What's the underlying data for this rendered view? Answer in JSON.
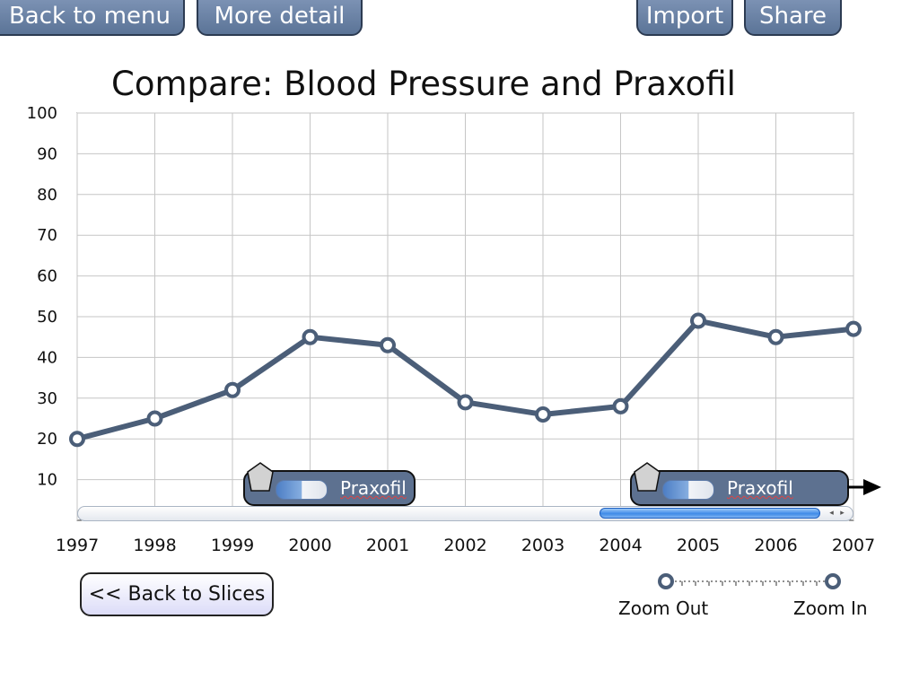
{
  "toolbar": {
    "back_to_menu": "Back to menu",
    "more_detail": "More detail",
    "import": "Import",
    "share": "Share"
  },
  "slices": [
    {
      "label": "Praxofil",
      "year_start": 1999.2
    },
    {
      "label": "Praxofil",
      "year_start": 2004.2
    }
  ],
  "back_to_slices": "<< Back to Slices",
  "zoom": {
    "out_label": "Zoom Out",
    "in_label": "Zoom In"
  },
  "colors": {
    "line": "#4b5e78",
    "button_fill": "#6b82a5",
    "slice_fill": "#5d7190",
    "scroll_thumb": "#3f8be8"
  },
  "chart_data": {
    "type": "line",
    "title": "Compare: Blood Pressure and Praxofil",
    "x": [
      "1997",
      "1998",
      "1999",
      "2000",
      "2001",
      "2002",
      "2003",
      "2004",
      "2005",
      "2006",
      "2007"
    ],
    "series": [
      {
        "values": [
          20,
          25,
          32,
          45,
          43,
          29,
          26,
          28,
          49,
          45,
          47
        ]
      }
    ],
    "ylim": [
      0,
      100
    ],
    "yticks": [
      10,
      20,
      30,
      40,
      50,
      60,
      70,
      80,
      90,
      100
    ],
    "grid": true,
    "xlabel": "",
    "ylabel": ""
  }
}
